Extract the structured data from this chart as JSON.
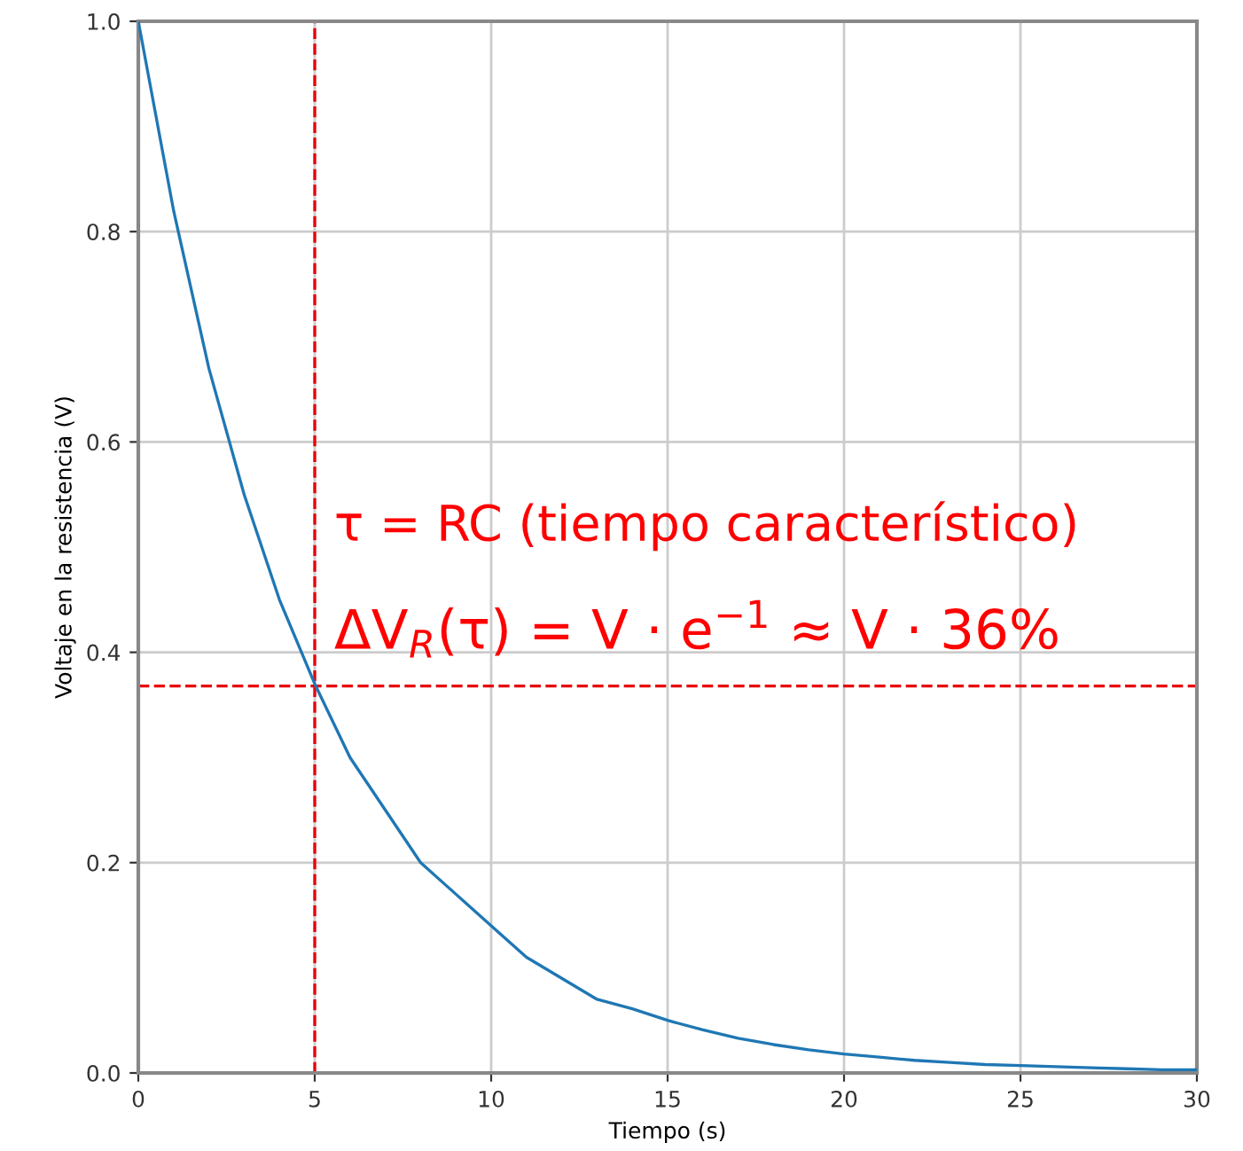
{
  "chart_data": {
    "type": "line",
    "xlabel": "Tiempo (s)",
    "ylabel": "Voltaje en la resistencia (V)",
    "x": [
      0,
      1,
      2,
      3,
      4,
      5,
      6,
      7,
      8,
      9,
      10,
      11,
      12,
      13,
      14,
      15,
      16,
      17,
      18,
      19,
      20,
      21,
      22,
      23,
      24,
      25,
      26,
      27,
      28,
      29,
      30
    ],
    "series": [
      {
        "color": "#1f77b4",
        "values": [
          1.0,
          0.82,
          0.67,
          0.55,
          0.45,
          0.37,
          0.3,
          0.25,
          0.2,
          0.17,
          0.14,
          0.11,
          0.09,
          0.07,
          0.061,
          0.05,
          0.041,
          0.033,
          0.027,
          0.022,
          0.018,
          0.015,
          0.012,
          0.01,
          0.008,
          0.007,
          0.006,
          0.005,
          0.004,
          0.003,
          0.003
        ]
      }
    ],
    "xlim": [
      0,
      30
    ],
    "xticks": [
      0,
      5,
      10,
      15,
      20,
      25,
      30
    ],
    "ylim": [
      0.0,
      1.0
    ],
    "yticks": [
      {
        "value": 0,
        "label": "0.0"
      },
      {
        "value": 0.2,
        "label": "0.2"
      },
      {
        "value": 0.4,
        "label": "0.4"
      },
      {
        "value": 0.6,
        "label": "0.6"
      },
      {
        "value": 0.8,
        "label": "0.8"
      },
      {
        "value": 1,
        "label": "1.0"
      }
    ],
    "grid": true,
    "marker": "none",
    "line_style": "solid",
    "ref_lines": [
      {
        "axis": "x",
        "value": 5,
        "color": "#e8000b",
        "line_style": "dashed"
      },
      {
        "axis": "y",
        "value": 0.368,
        "color": "#e8000b",
        "line_style": "dashed"
      }
    ],
    "annotations": [
      "τ = RC (tiempo característico)",
      "ΔV$_{R}$(τ) = V · e$^{−1}$ ≈ V · 36%"
    ]
  }
}
